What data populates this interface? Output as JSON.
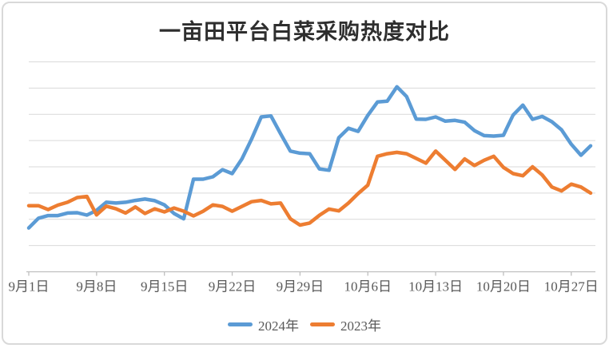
{
  "chart_data": {
    "type": "line",
    "title": "一亩田平台白菜采购热度对比",
    "xlabel": "",
    "ylabel": "",
    "y_axis_labels_visible": false,
    "ylim": [
      0,
      800
    ],
    "y_gridline_interval": 100,
    "grid": "horizontal",
    "legend_position": "bottom",
    "x_tick_labels": [
      "9月1日",
      "9月8日",
      "9月15日",
      "9月22日",
      "9月29日",
      "10月6日",
      "10月13日",
      "10月20日",
      "10月27日"
    ],
    "x": [
      "9月1日",
      "9月2日",
      "9月3日",
      "9月4日",
      "9月5日",
      "9月6日",
      "9月7日",
      "9月8日",
      "9月9日",
      "9月10日",
      "9月11日",
      "9月12日",
      "9月13日",
      "9月14日",
      "9月15日",
      "9月16日",
      "9月17日",
      "9月18日",
      "9月19日",
      "9月20日",
      "9月21日",
      "9月22日",
      "9月23日",
      "9月24日",
      "9月25日",
      "9月26日",
      "9月27日",
      "9月28日",
      "9月29日",
      "9月30日",
      "10月1日",
      "10月2日",
      "10月3日",
      "10月4日",
      "10月5日",
      "10月6日",
      "10月7日",
      "10月8日",
      "10月9日",
      "10月10日",
      "10月11日",
      "10月12日",
      "10月13日",
      "10月14日",
      "10月15日",
      "10月16日",
      "10月17日",
      "10月18日",
      "10月19日",
      "10月20日",
      "10月21日",
      "10月22日",
      "10月23日",
      "10月24日",
      "10月25日",
      "10月26日",
      "10月27日",
      "10月28日",
      "10月29日"
    ],
    "series": [
      {
        "name": "2024年",
        "color": "#5B9BD5",
        "values": [
          167,
          204,
          214,
          214,
          224,
          225,
          216,
          234,
          265,
          262,
          265,
          272,
          277,
          271,
          255,
          222,
          202,
          353,
          353,
          362,
          389,
          374,
          430,
          506,
          590,
          594,
          526,
          460,
          452,
          450,
          392,
          387,
          511,
          547,
          535,
          596,
          647,
          650,
          705,
          668,
          582,
          581,
          590,
          574,
          577,
          570,
          538,
          519,
          517,
          520,
          597,
          635,
          581,
          592,
          572,
          541,
          486,
          444,
          480
        ]
      },
      {
        "name": "2023年",
        "color": "#ED7D31",
        "values": [
          252,
          252,
          237,
          254,
          265,
          283,
          287,
          217,
          250,
          240,
          224,
          247,
          222,
          240,
          228,
          243,
          231,
          213,
          231,
          255,
          249,
          231,
          249,
          267,
          272,
          259,
          262,
          202,
          178,
          186,
          215,
          239,
          232,
          262,
          298,
          330,
          440,
          450,
          455,
          450,
          432,
          414,
          460,
          425,
          390,
          430,
          405,
          425,
          440,
          398,
          374,
          366,
          400,
          369,
          323,
          308,
          334,
          323,
          300
        ]
      }
    ]
  },
  "colors": {
    "gridline": "#D9D9D9",
    "axis_line": "#BFBFBF",
    "tick_label": "#595959",
    "title": "#2E2E2E",
    "background": "#FFFFFF",
    "frame_border": "#D9D9D9"
  }
}
